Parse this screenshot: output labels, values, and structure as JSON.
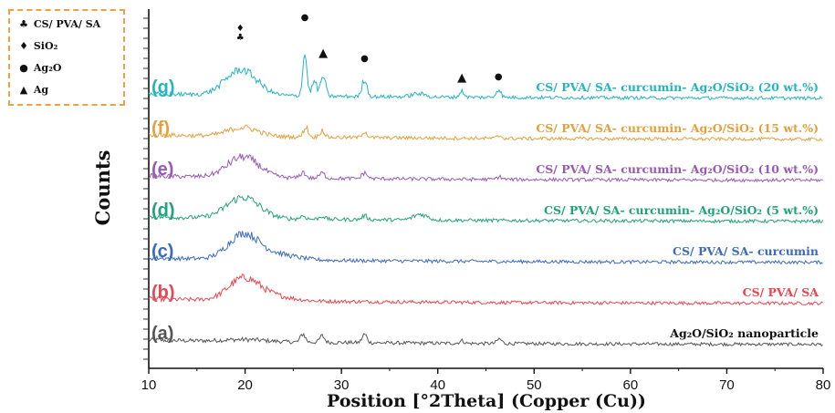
{
  "chart_data": {
    "type": "line",
    "xlabel": "Position [°2Theta] (Copper (Cu))",
    "ylabel": "Counts",
    "xlim": [
      10,
      80
    ],
    "x_ticks": [
      10,
      20,
      30,
      40,
      50,
      60,
      70,
      80
    ],
    "grid": false,
    "legend": {
      "placement": "top-left",
      "entries": [
        {
          "symbol": "♣",
          "label": "CS/ PVA/ SA"
        },
        {
          "symbol": "♦",
          "label": "SiO₂"
        },
        {
          "symbol": "●",
          "label": "Ag₂O"
        },
        {
          "symbol": "▲",
          "label": "Ag"
        }
      ]
    },
    "series": [
      {
        "letter": "(a)",
        "name": "Ag₂O/SiO₂ nanoparticle",
        "color": "#555555",
        "baseline": 0,
        "peaks": [
          [
            20,
            0.3,
            3
          ],
          [
            26,
            1.3,
            0.35
          ],
          [
            28,
            1.0,
            0.35
          ],
          [
            32.4,
            1.3,
            0.35
          ],
          [
            46.4,
            0.7,
            0.35
          ],
          [
            42.5,
            0.4,
            0.35
          ]
        ]
      },
      {
        "letter": "(b)",
        "name": "CS/ PVA/ SA",
        "color": "#e8474f",
        "baseline": 1,
        "peaks": [
          [
            19.8,
            3.2,
            2.2
          ],
          [
            22.5,
            0.8,
            3
          ]
        ]
      },
      {
        "letter": "(c)",
        "name": "CS/ PVA/ SA- curcumin",
        "color": "#3a6bbf",
        "baseline": 2,
        "peaks": [
          [
            19.8,
            3.8,
            2.2
          ],
          [
            23,
            0.9,
            3
          ]
        ]
      },
      {
        "letter": "(d)",
        "name": "CS/ PVA/ SA- curcumin- Ag₂O/SiO₂ (5 wt.%)",
        "color": "#1fa37a",
        "baseline": 3,
        "peaks": [
          [
            19.8,
            3.3,
            2.4
          ],
          [
            26,
            0.5,
            0.4
          ],
          [
            28,
            0.5,
            0.4
          ],
          [
            32.4,
            0.6,
            0.4
          ],
          [
            38.2,
            0.9,
            1
          ]
        ]
      },
      {
        "letter": "(e)",
        "name": "CS/ PVA/ SA- curcumin- Ag₂O/SiO₂ (10 wt.%)",
        "color": "#9b59b6",
        "baseline": 4,
        "peaks": [
          [
            19.8,
            3.2,
            2.3
          ],
          [
            26,
            0.9,
            0.4
          ],
          [
            28,
            0.8,
            0.4
          ],
          [
            32.4,
            0.9,
            0.4
          ],
          [
            46.4,
            0.4,
            0.4
          ]
        ]
      },
      {
        "letter": "(f)",
        "name": "CS/ PVA/ SA- curcumin- Ag₂O/SiO₂ (15 wt.%)",
        "color": "#e2a13d",
        "baseline": 5,
        "peaks": [
          [
            19.8,
            1.4,
            2.2
          ],
          [
            26.3,
            1.6,
            0.35
          ],
          [
            28,
            1.1,
            0.35
          ],
          [
            32.4,
            1.0,
            0.35
          ],
          [
            46.4,
            0.4,
            0.35
          ]
        ]
      },
      {
        "letter": "(g)",
        "name": "CS/ PVA/ SA- curcumin- Ag₂O/SiO₂ (20 wt.%)",
        "color": "#25b5c0",
        "baseline": 6,
        "peaks": [
          [
            19.6,
            4.0,
            2.3
          ],
          [
            26.2,
            6.5,
            0.32
          ],
          [
            27.2,
            2.3,
            0.35
          ],
          [
            28.1,
            3.2,
            0.35
          ],
          [
            32.4,
            2.8,
            0.35
          ],
          [
            42.5,
            0.9,
            0.35
          ],
          [
            46.3,
            1.3,
            0.35
          ],
          [
            38,
            0.5,
            1
          ]
        ]
      }
    ],
    "peak_markers": [
      {
        "symbol": "♦",
        "x": 19.5
      },
      {
        "symbol": "♣",
        "x": 19.5
      },
      {
        "symbol": "●",
        "x": 26.2
      },
      {
        "symbol": "▲",
        "x": 28.1
      },
      {
        "symbol": "●",
        "x": 32.4
      },
      {
        "symbol": "▲",
        "x": 42.5
      },
      {
        "symbol": "●",
        "x": 46.3
      }
    ]
  }
}
